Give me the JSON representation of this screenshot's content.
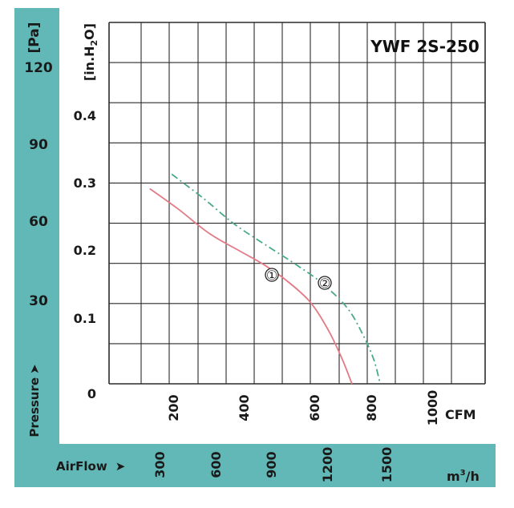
{
  "colors": {
    "panel": "#62b8b6",
    "grid": "#2b2b2b",
    "curve1": "#e37a86",
    "curve2": "#4aa98a"
  },
  "chart_data": {
    "type": "line",
    "title": "YWF 2S-250",
    "pressure_label": "Pressure",
    "pa_unit": "[Pa]",
    "pa_ticks": [
      "120",
      "90",
      "60",
      "30"
    ],
    "inh2o_unit_prefix": "[in.H",
    "inh2o_unit_sub": "2",
    "inh2o_unit_suffix": "O]",
    "inh2o_ticks": [
      "0.4",
      "0.3",
      "0.2",
      "0.1",
      "0"
    ],
    "cfm_ticks": [
      "200",
      "400",
      "600",
      "800",
      "1000"
    ],
    "cfm_unit": "CFM",
    "airflow_label": "AirFlow",
    "m3h_ticks": [
      "300",
      "600",
      "900",
      "1200",
      "1500"
    ],
    "m3h_unit_prefix": "m",
    "m3h_unit_sup": "3",
    "m3h_unit_suffix": "/h",
    "xlim_cfm": [
      0,
      1200
    ],
    "ylim_inh2o": [
      0,
      0.5
    ],
    "grid": true,
    "series": [
      {
        "name": "①",
        "points": [
          [
            130,
            0.27
          ],
          [
            220,
            0.242
          ],
          [
            320,
            0.208
          ],
          [
            420,
            0.183
          ],
          [
            490,
            0.166
          ],
          [
            560,
            0.145
          ],
          [
            640,
            0.114
          ],
          [
            700,
            0.074
          ],
          [
            745,
            0.033
          ],
          [
            775,
            0.0
          ]
        ]
      },
      {
        "name": "②",
        "points": [
          [
            200,
            0.29
          ],
          [
            300,
            0.257
          ],
          [
            400,
            0.221
          ],
          [
            500,
            0.192
          ],
          [
            600,
            0.164
          ],
          [
            680,
            0.139
          ],
          [
            760,
            0.105
          ],
          [
            810,
            0.068
          ],
          [
            845,
            0.033
          ],
          [
            865,
            0.0
          ]
        ]
      }
    ]
  }
}
